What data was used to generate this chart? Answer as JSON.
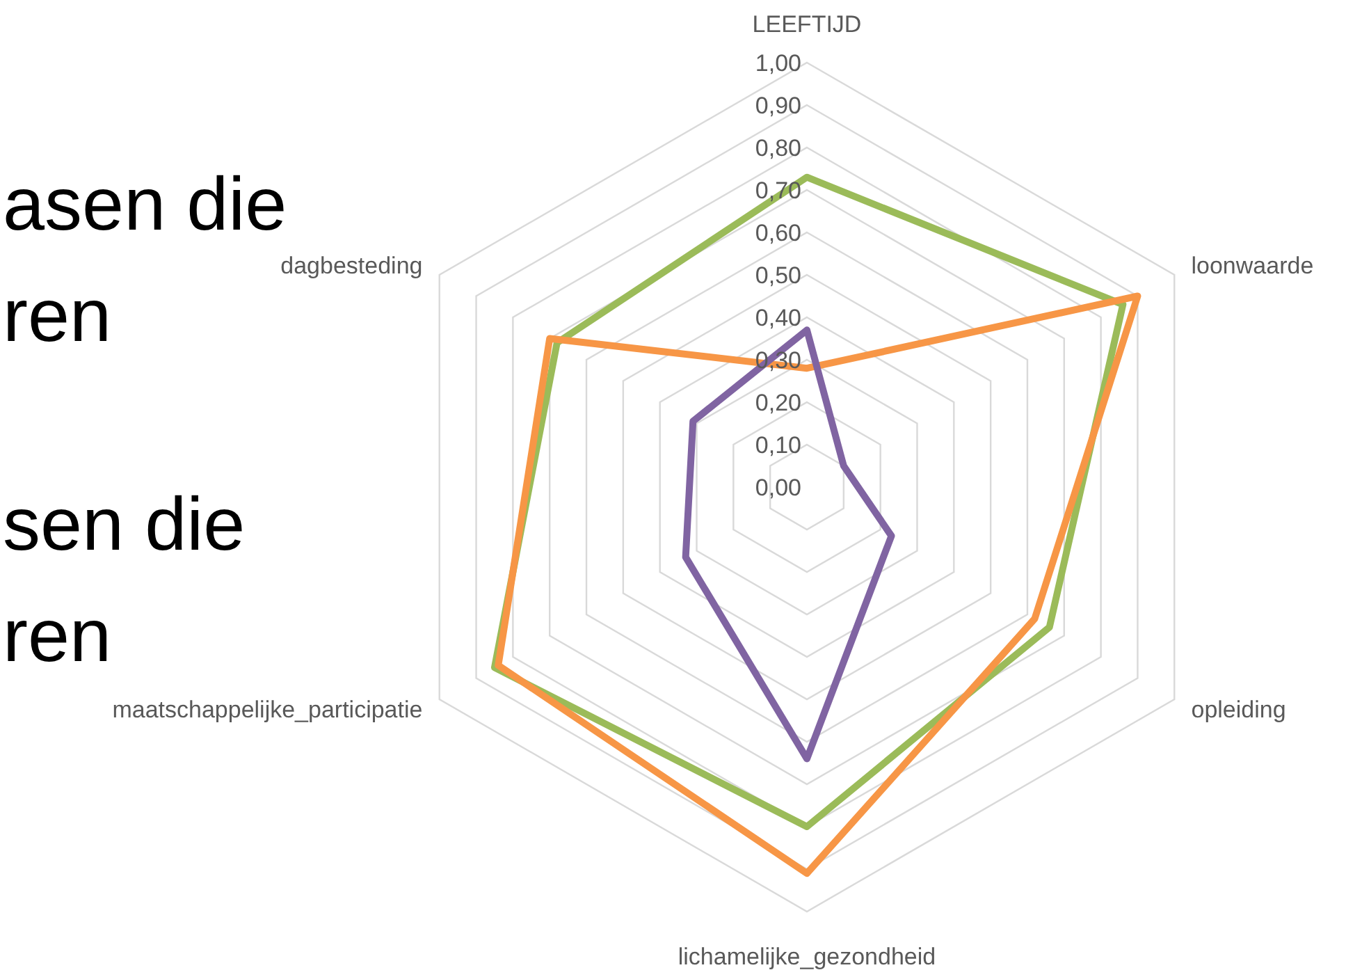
{
  "chart_data": {
    "type": "radar",
    "categories": [
      "LEEFTIJD",
      "loonwaarde",
      "opleiding",
      "lichamelijke_gezondheid",
      "maatschappelijke_participatie",
      "dagbesteding"
    ],
    "series": [
      {
        "color": "#9bbb59",
        "values": [
          0.73,
          0.86,
          0.66,
          0.8,
          0.85,
          0.68
        ]
      },
      {
        "color": "#f79646",
        "values": [
          0.28,
          0.9,
          0.62,
          0.91,
          0.84,
          0.7
        ]
      },
      {
        "color": "#8064a2",
        "values": [
          0.37,
          0.1,
          0.23,
          0.64,
          0.33,
          0.31
        ]
      }
    ],
    "ylim": [
      0,
      1
    ],
    "yticks": [
      {
        "value": 0,
        "label": "0,00"
      },
      {
        "value": 0.1,
        "label": "0,10"
      },
      {
        "value": 0.2,
        "label": "0,20"
      },
      {
        "value": 0.3,
        "label": "0,30"
      },
      {
        "value": 0.4,
        "label": "0,40"
      },
      {
        "value": 0.5,
        "label": "0,50"
      },
      {
        "value": 0.6,
        "label": "0,60"
      },
      {
        "value": 0.7,
        "label": "0,70"
      },
      {
        "value": 0.8,
        "label": "0,80"
      },
      {
        "value": 0.9,
        "label": "0,90"
      },
      {
        "value": 1,
        "label": "1,00"
      }
    ],
    "grid": true,
    "marker": "none",
    "line_style": "solid",
    "annotations": [
      "asen die",
      "ren",
      "sen die",
      "ren"
    ]
  }
}
